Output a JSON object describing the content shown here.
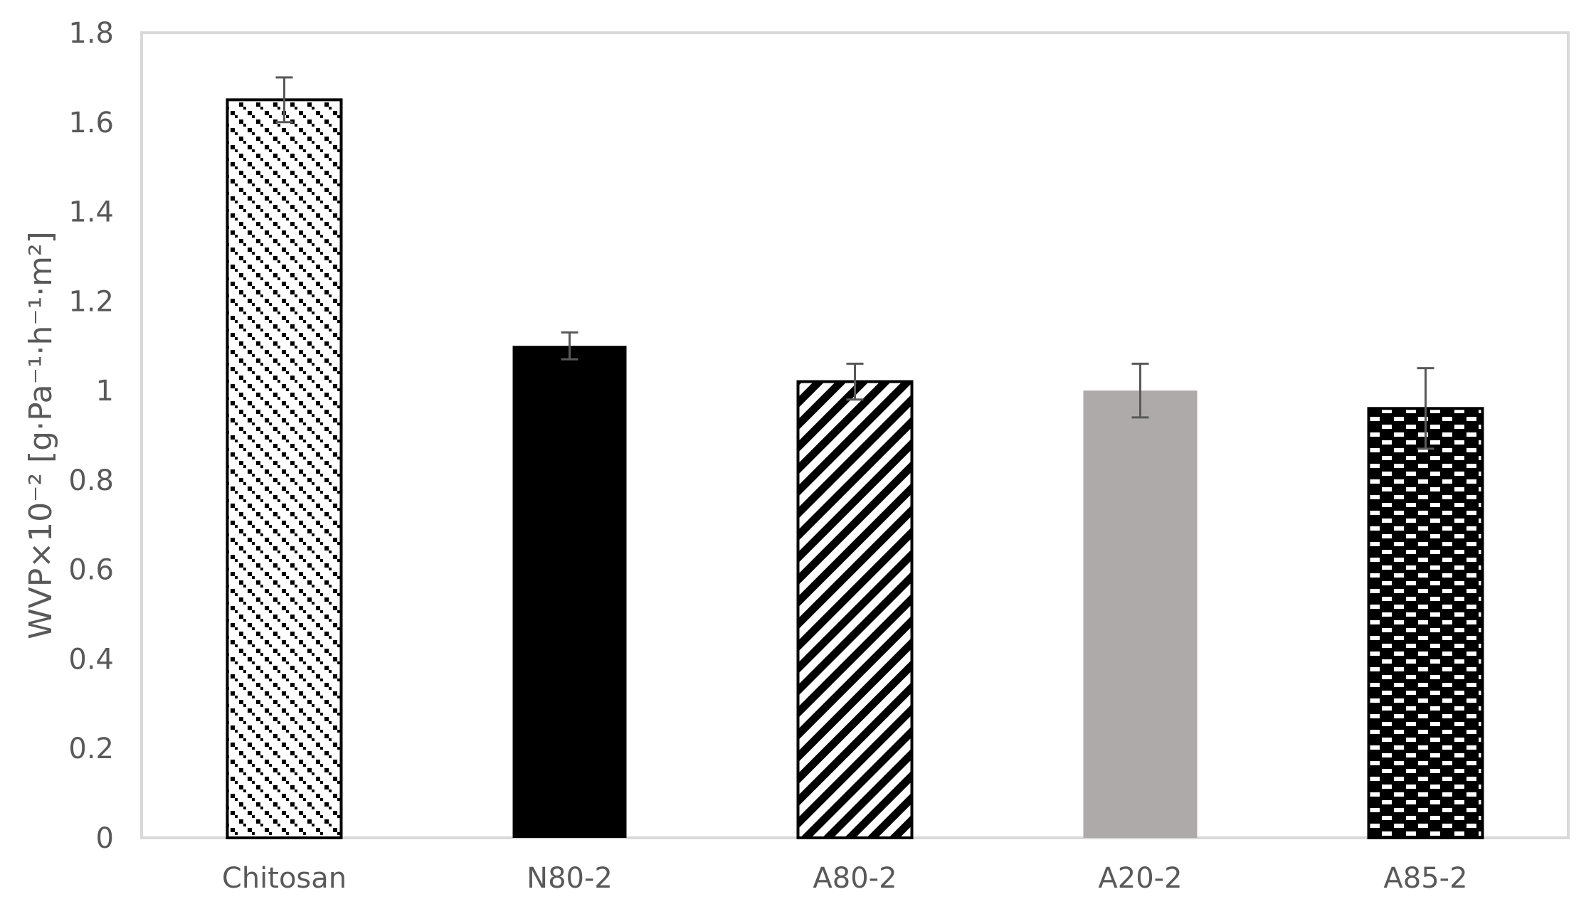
{
  "chart_data": {
    "type": "bar",
    "title": "",
    "xlabel": "",
    "ylabel": "WVP×10⁻² [g·Pa⁻¹·h⁻¹·m²]",
    "ylim": [
      0,
      1.8
    ],
    "ytick_step": 0.2,
    "yticks": [
      "0",
      "0.2",
      "0.4",
      "0.6",
      "0.8",
      "1",
      "1.2",
      "1.4",
      "1.6",
      "1.8"
    ],
    "grid": false,
    "legend": "none",
    "categories": [
      "Chitosan",
      "N80-2",
      "A80-2",
      "A20-2",
      "A85-2"
    ],
    "values": [
      1.65,
      1.1,
      1.02,
      1.0,
      0.96
    ],
    "errors": [
      0.05,
      0.03,
      0.04,
      0.06,
      0.09
    ],
    "fills": [
      {
        "pattern": "dashed-diagonal-down",
        "color": "#000000",
        "outline": true
      },
      {
        "pattern": "solid",
        "color": "#000000",
        "outline": false
      },
      {
        "pattern": "wide-diagonal-up",
        "color": "#000000",
        "outline": true
      },
      {
        "pattern": "solid",
        "color": "#aeaaaa",
        "outline": false
      },
      {
        "pattern": "dashed-horizontal-brick",
        "color": "#000000",
        "outline": true
      }
    ],
    "colors": {
      "axis_text": "#595959",
      "frame": "#d9d9d9",
      "error_bar": "#595959"
    }
  }
}
